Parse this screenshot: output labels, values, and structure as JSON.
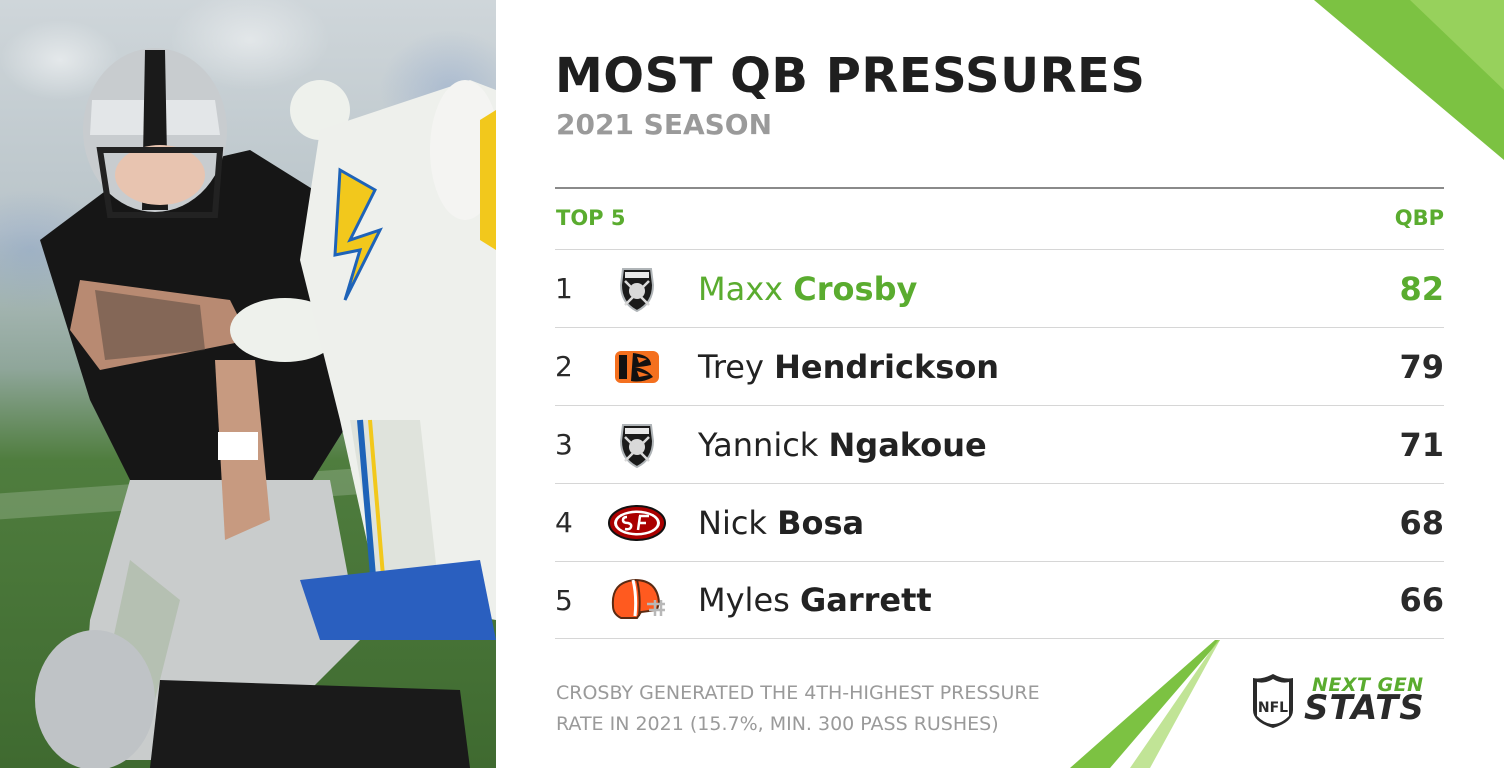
{
  "header": {
    "title": "MOST QB PRESSURES",
    "subtitle": "2021 SEASON"
  },
  "table": {
    "left_header": "TOP 5",
    "right_header": "QBP",
    "rows": [
      {
        "rank": "1",
        "team": "Raiders",
        "team_icon": "raiders-logo-icon",
        "first": "Maxx",
        "last": "Crosby",
        "qbp": "82",
        "highlight": true
      },
      {
        "rank": "2",
        "team": "Bengals",
        "team_icon": "bengals-logo-icon",
        "first": "Trey",
        "last": "Hendrickson",
        "qbp": "79",
        "highlight": false
      },
      {
        "rank": "3",
        "team": "Raiders",
        "team_icon": "raiders-logo-icon",
        "first": "Yannick",
        "last": "Ngakoue",
        "qbp": "71",
        "highlight": false
      },
      {
        "rank": "4",
        "team": "49ers",
        "team_icon": "49ers-logo-icon",
        "first": "Nick",
        "last": "Bosa",
        "qbp": "68",
        "highlight": false
      },
      {
        "rank": "5",
        "team": "Browns",
        "team_icon": "browns-helmet-icon",
        "first": "Myles",
        "last": "Garrett",
        "qbp": "66",
        "highlight": false
      }
    ]
  },
  "footnote": {
    "line1": "CROSBY GENERATED THE 4TH-HIGHEST PRESSURE",
    "line2": "RATE IN 2021 (15.7%, MIN. 300 PASS RUSHES)"
  },
  "brand": {
    "top": "NEXT GEN",
    "bottom": "STATS",
    "shield_text": "NFL"
  },
  "colors": {
    "accent_green": "#5aac2f",
    "text_dark": "#222222",
    "text_gray": "#9a9a9a",
    "rule": "#d6d6d6"
  }
}
